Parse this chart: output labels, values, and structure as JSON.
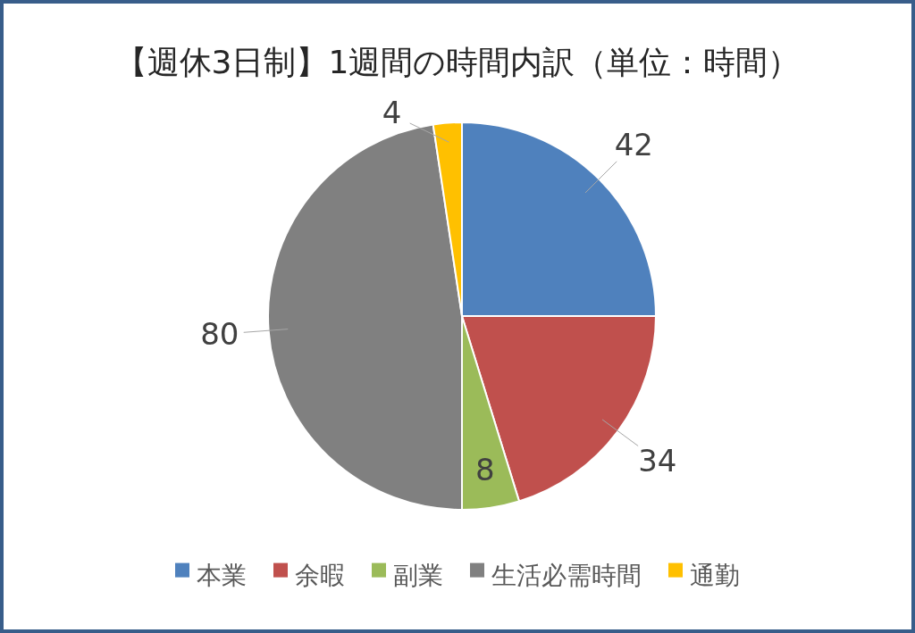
{
  "chart_data": {
    "type": "pie",
    "title": "【週休3日制】1週間の時間内訳（単位：時間）",
    "categories": [
      "本業",
      "余暇",
      "副業",
      "生活必需時間",
      "通勤"
    ],
    "values": [
      42,
      34,
      8,
      80,
      4
    ],
    "colors": [
      "#4f81bd",
      "#c0504d",
      "#9bbb59",
      "#808080",
      "#ffc000"
    ],
    "data_labels": true,
    "legend": "bottom"
  }
}
